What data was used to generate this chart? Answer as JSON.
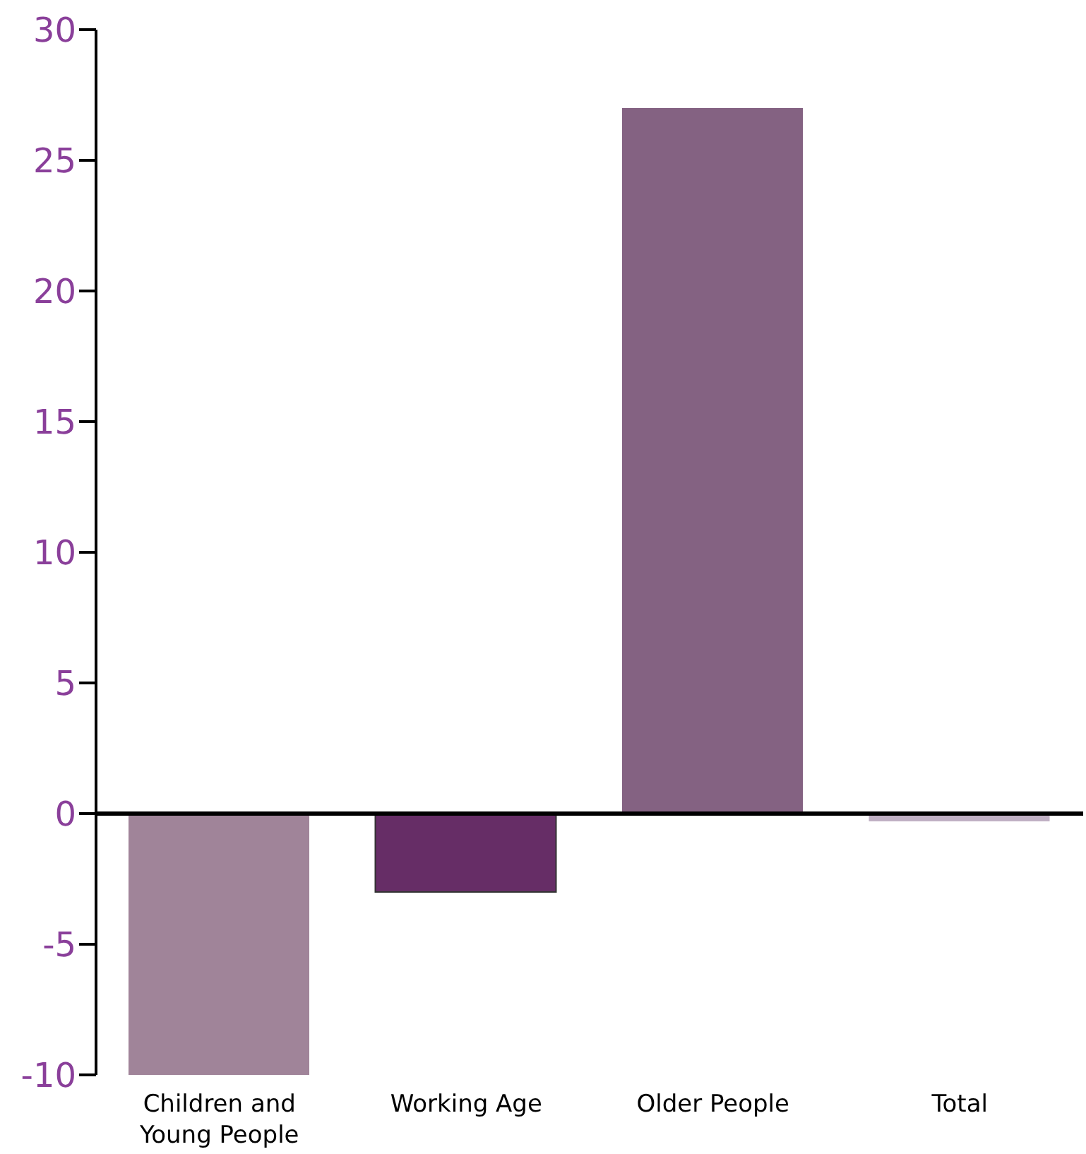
{
  "chart_data": {
    "type": "bar",
    "categories": [
      "Children and Young People",
      "Working Age",
      "Older People",
      "Total"
    ],
    "values": [
      -10,
      -3,
      27,
      -0.3
    ],
    "colors": [
      "#a08499",
      "#662d66",
      "#846282",
      "#c0b0c4"
    ],
    "ylim": [
      -10,
      30
    ],
    "yticks": [
      -10,
      -5,
      0,
      5,
      10,
      15,
      20,
      25,
      30
    ]
  }
}
